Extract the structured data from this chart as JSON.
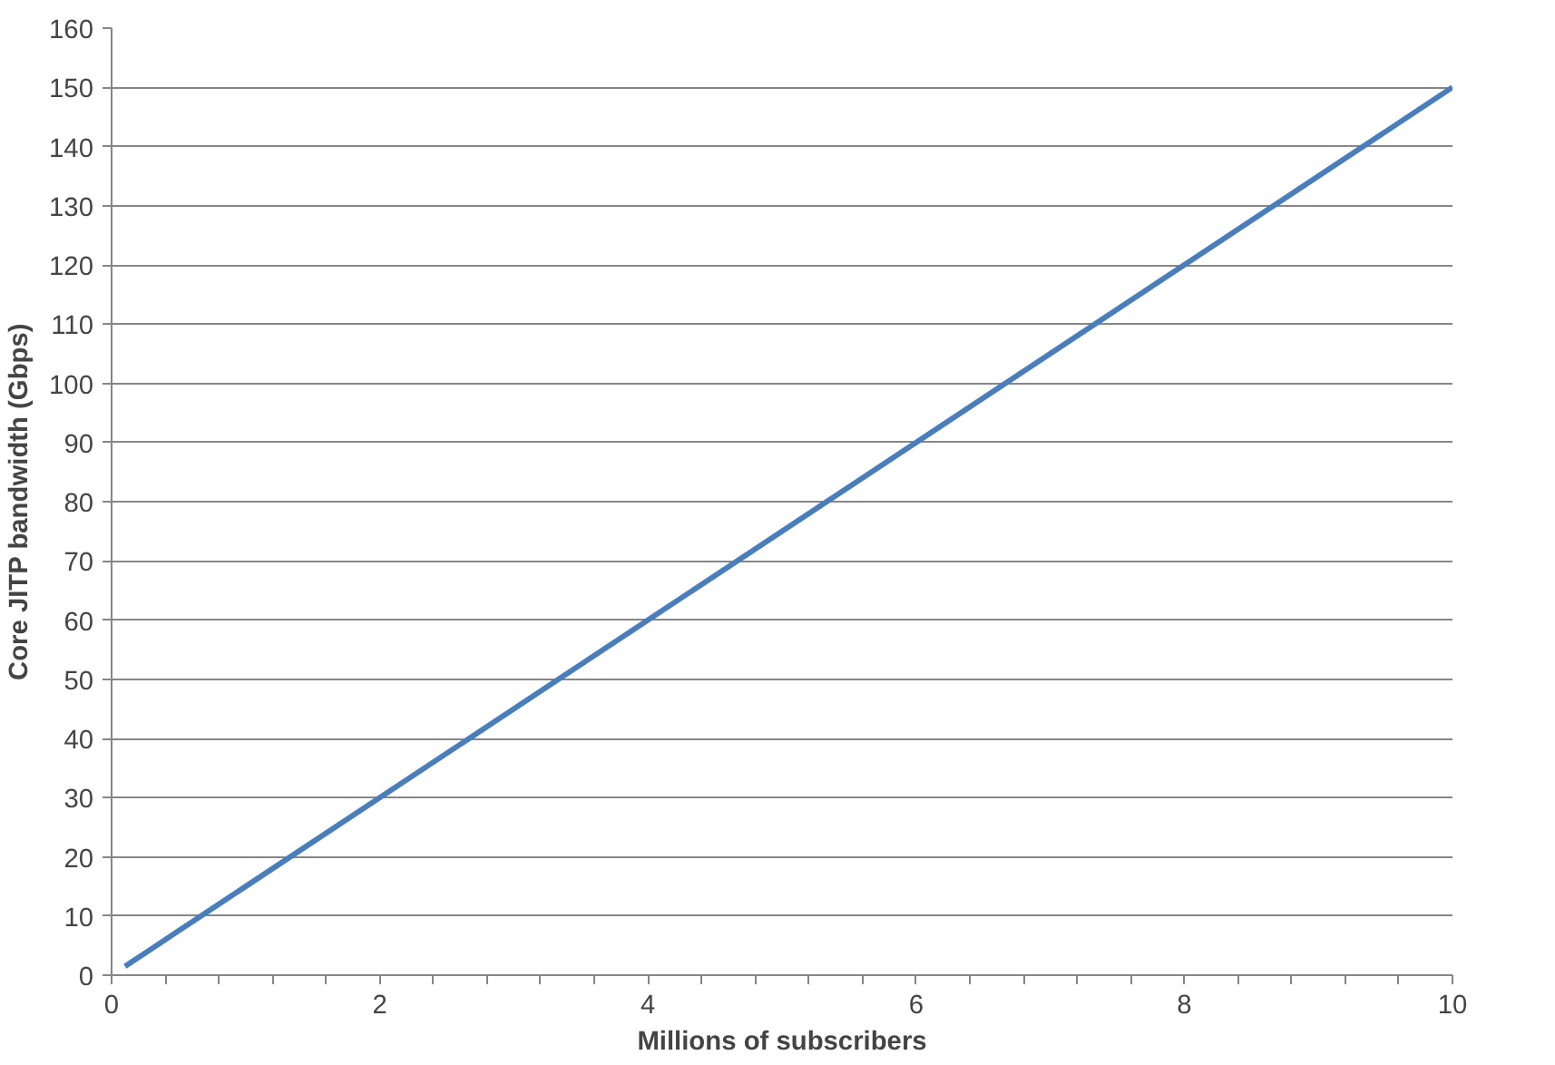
{
  "chart_data": {
    "type": "line",
    "xlabel": "Millions of subscribers",
    "ylabel": "Core JITP bandwidth (Gbps)",
    "x": [
      0.1,
      0.3,
      0.5,
      1,
      2,
      4,
      6,
      8,
      10
    ],
    "series": [
      {
        "color": "#4a7ebb",
        "values": [
          1.5,
          4.5,
          7.5,
          15,
          30,
          60,
          90,
          120,
          150
        ]
      }
    ],
    "xlim": [
      0,
      10
    ],
    "ylim": [
      0,
      160
    ],
    "xticks": [
      0,
      {
        "value": 0.4,
        "label": null
      },
      {
        "value": 0.8,
        "label": null
      },
      {
        "value": 1.2,
        "label": null
      },
      {
        "value": 1.6,
        "label": null
      },
      2,
      {
        "value": 2.4,
        "label": null
      },
      {
        "value": 2.8,
        "label": null
      },
      {
        "value": 3.2,
        "label": null
      },
      {
        "value": 3.6,
        "label": null
      },
      4,
      {
        "value": 4.4,
        "label": null
      },
      {
        "value": 4.8,
        "label": null
      },
      {
        "value": 5.2,
        "label": null
      },
      {
        "value": 5.6,
        "label": null
      },
      6,
      {
        "value": 6.4,
        "label": null
      },
      {
        "value": 6.8,
        "label": null
      },
      {
        "value": 7.2,
        "label": null
      },
      {
        "value": 7.6,
        "label": null
      },
      8,
      {
        "value": 8.4,
        "label": null
      },
      {
        "value": 8.8,
        "label": null
      },
      {
        "value": 9.2,
        "label": null
      },
      {
        "value": 9.6,
        "label": null
      },
      10
    ],
    "yticks": [
      0,
      10,
      20,
      30,
      40,
      50,
      60,
      70,
      80,
      90,
      100,
      110,
      120,
      130,
      140,
      150,
      160
    ],
    "grid": "y",
    "line_style": "solid"
  }
}
